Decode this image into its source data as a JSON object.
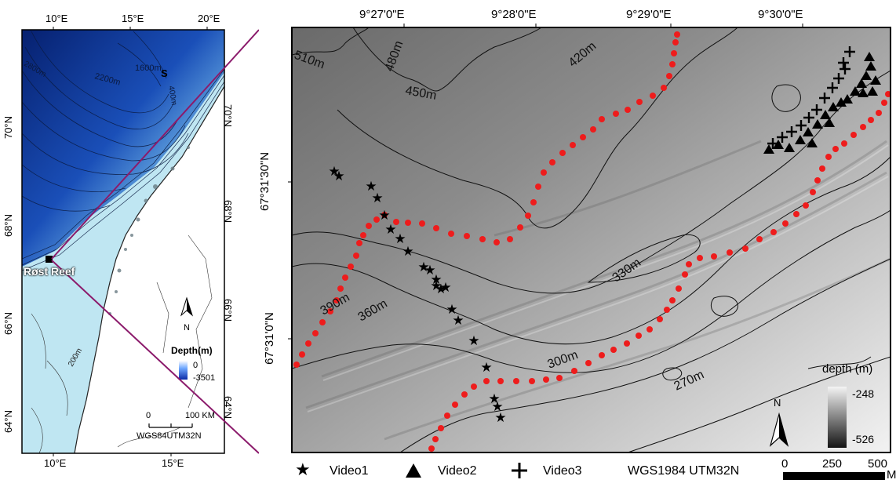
{
  "overview_map": {
    "top_lon_labels": [
      "10°E",
      "15°E",
      "20°E"
    ],
    "bottom_lon_labels": [
      "10°E",
      "15°E"
    ],
    "left_lat_labels": [
      "70°N",
      "68°N",
      "66°N",
      "64°N"
    ],
    "right_lat_labels": [
      "70°N",
      "68°N",
      "66°N",
      "64°N"
    ],
    "site_label": "Røst Reef",
    "contour_labels": [
      "2800m",
      "2200m",
      "1600m",
      "400m",
      "200m"
    ],
    "island_letter": "S",
    "north_letter": "N",
    "depth_legend": {
      "title": "Depth(m)",
      "max": "0",
      "min": "-3501"
    },
    "scale": {
      "start": "0",
      "end": "100 KM",
      "projection": "WGS84UTM32N"
    },
    "colors": {
      "deep": "#0b2a86",
      "shallow": "#bfe6f2",
      "land": "#ffffff"
    }
  },
  "detail_map": {
    "top_lon_labels": [
      "9°27'0\"E",
      "9°28'0\"E",
      "9°29'0\"E",
      "9°30'0\"E"
    ],
    "left_lat_labels": [
      "67°31'30\"N",
      "67°31'0\"N"
    ],
    "contour_labels": [
      "510m",
      "480m",
      "450m",
      "420m",
      "390m",
      "360m",
      "330m",
      "300m",
      "270m"
    ],
    "north_letter": "N",
    "depth_legend": {
      "title": "depth (m)",
      "max": "-248",
      "min": "-526"
    },
    "scale": {
      "labels": [
        "0",
        "250",
        "500"
      ],
      "unit": "M"
    },
    "projection": "WGS1984 UTM32N",
    "colors": {
      "track": "#ee1c1c",
      "frame": "#000000",
      "connector": "#8b1a6b"
    }
  },
  "legend": {
    "video1": {
      "symbol": "star",
      "label": "Video1"
    },
    "video2": {
      "symbol": "triangle",
      "label": "Video2"
    },
    "video3": {
      "symbol": "plus",
      "label": "Video3"
    }
  }
}
